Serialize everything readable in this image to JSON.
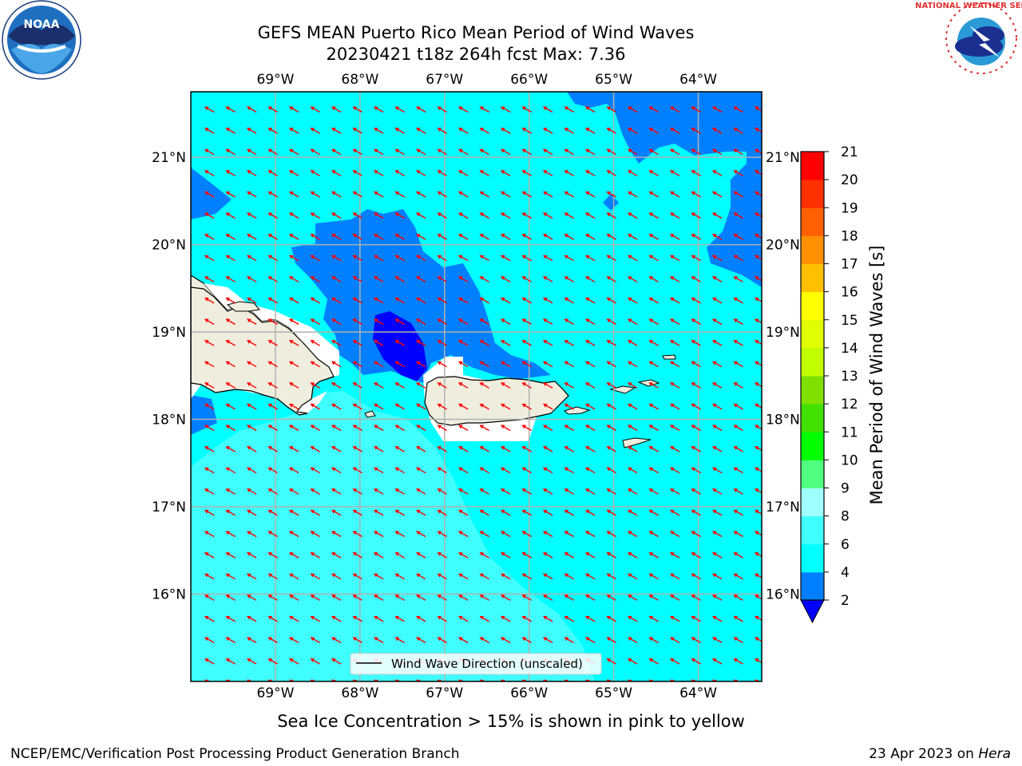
{
  "title": {
    "line1": "GEFS MEAN Puerto Rico Mean Period of Wind Waves",
    "line2": "20230421 t18z 264h fcst   Max: 7.36"
  },
  "map": {
    "lon_min": -70.0,
    "lon_max": -63.25,
    "lat_min": 15.0,
    "lat_max": 21.75,
    "lon_ticks": [
      {
        "value": -69,
        "label": "69°W"
      },
      {
        "value": -68,
        "label": "68°W"
      },
      {
        "value": -67,
        "label": "67°W"
      },
      {
        "value": -66,
        "label": "66°W"
      },
      {
        "value": -65,
        "label": "65°W"
      },
      {
        "value": -64,
        "label": "64°W"
      }
    ],
    "lat_ticks": [
      {
        "value": 21,
        "label": "21°N"
      },
      {
        "value": 20,
        "label": "20°N"
      },
      {
        "value": 19,
        "label": "19°N"
      },
      {
        "value": 18,
        "label": "18°N"
      },
      {
        "value": 17,
        "label": "17°N"
      },
      {
        "value": 16,
        "label": "16°N"
      }
    ],
    "grid": true,
    "vector_direction_deg": 150,
    "vector_color": "#ff0000",
    "land_color": "#efedde"
  },
  "colorbar": {
    "label": "Mean Period of Wind Waves [s]",
    "levels": [
      2,
      4,
      6,
      8,
      9,
      10,
      11,
      12,
      13,
      14,
      15,
      16,
      17,
      18,
      19,
      20,
      21
    ],
    "tick_labels": [
      "2",
      "4",
      "6",
      "8",
      "9",
      "10",
      "11",
      "12",
      "13",
      "14",
      "15",
      "16",
      "17",
      "18",
      "19",
      "20",
      "21"
    ],
    "colors": [
      "#0080ff",
      "#00ffff",
      "#40ffff",
      "#a0ffff",
      "#50ff80",
      "#00ff00",
      "#40e000",
      "#80e000",
      "#c0ff00",
      "#e0ff00",
      "#ffff00",
      "#ffc000",
      "#ff9000",
      "#ff6000",
      "#ff3000",
      "#ff0000"
    ],
    "under_color": "#0000ff"
  },
  "legend": {
    "label": "Wind Wave Direction (unscaled)"
  },
  "note": "Sea Ice Concentration > 15% is shown in pink to yellow",
  "footer": {
    "left": "NCEP/EMC/Verification Post Processing Product Generation Branch",
    "right_prefix": "23 Apr 2023 on ",
    "right_host": "Hera"
  },
  "logos": {
    "left": {
      "name": "noaa-logo",
      "text": "NOAA"
    },
    "right": {
      "name": "nws-logo",
      "text": "NATIONAL WEATHER SERVICE"
    }
  }
}
